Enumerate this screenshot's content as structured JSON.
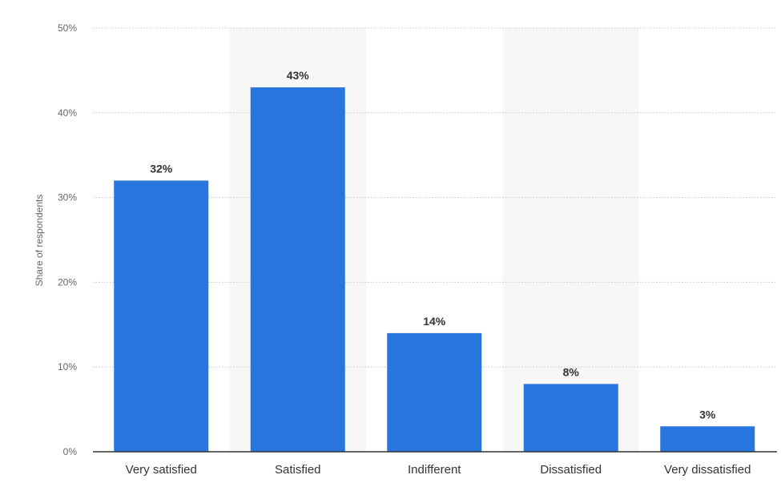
{
  "chart_data": {
    "type": "bar",
    "categories": [
      "Very satisfied",
      "Satisfied",
      "Indifferent",
      "Dissatisfied",
      "Very dissatisfied"
    ],
    "values": [
      32,
      43,
      14,
      8,
      3
    ],
    "data_labels": [
      "32%",
      "43%",
      "14%",
      "8%",
      "3%"
    ],
    "title": "",
    "xlabel": "",
    "ylabel": "Share of respondents",
    "ylim": [
      0,
      50
    ],
    "yticks": [
      0,
      10,
      20,
      30,
      40,
      50
    ],
    "ytick_labels": [
      "0%",
      "10%",
      "20%",
      "30%",
      "40%",
      "50%"
    ],
    "grid": true,
    "legend": "none",
    "bar_color": "#2876dd",
    "band_color": "#f7f7f7"
  }
}
